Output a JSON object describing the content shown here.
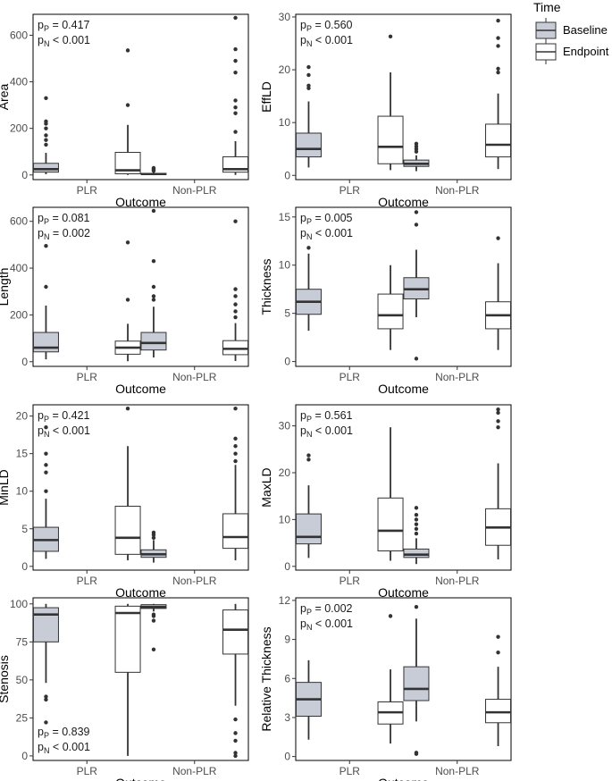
{
  "chart_data": {
    "type": "boxplot",
    "categories": [
      "PLR",
      "Non-PLR"
    ],
    "xlabel": "Outcome",
    "legend": {
      "title": "Time",
      "position": "top-right",
      "entries": [
        {
          "name": "Baseline",
          "color": "#c8ccd6"
        },
        {
          "name": "Endpoint",
          "color": "#ffffff"
        }
      ]
    },
    "panels": [
      {
        "ylabel": "Area",
        "ylim": [
          -20,
          690
        ],
        "yticks": [
          0,
          200,
          400,
          600
        ],
        "annotation": {
          "position": "top-left",
          "lines": [
            {
              "sub": "P",
              "value": "= 0.417"
            },
            {
              "sub": "N",
              "value": "< 0.001"
            }
          ]
        },
        "series": {
          "Baseline": [
            {
              "category": "PLR",
              "q1": 12,
              "median": 25,
              "q3": 50,
              "lo": 3,
              "hi": 95,
              "outliers": [
                130,
                150,
                170,
                200,
                220,
                230,
                330
              ]
            },
            {
              "category": "Non-PLR",
              "q1": 2,
              "median": 4,
              "q3": 7,
              "lo": 0,
              "hi": 12,
              "outliers": [
                18,
                22,
                26,
                30
              ]
            }
          ],
          "Endpoint": [
            {
              "category": "PLR",
              "q1": 5,
              "median": 20,
              "q3": 97,
              "lo": 0,
              "hi": 215,
              "outliers": [
                300,
                535
              ]
            },
            {
              "category": "Non-PLR",
              "q1": 12,
              "median": 25,
              "q3": 78,
              "lo": 0,
              "hi": 145,
              "outliers": [
                185,
                265,
                290,
                320,
                440,
                490,
                540,
                675
              ]
            }
          ]
        }
      },
      {
        "ylabel": "EffLD",
        "ylim": [
          -0.8,
          30.5
        ],
        "yticks": [
          0,
          10,
          20,
          30
        ],
        "annotation": {
          "position": "top-left",
          "lines": [
            {
              "sub": "P",
              "value": "= 0.560"
            },
            {
              "sub": "N",
              "value": "< 0.001"
            }
          ]
        },
        "series": {
          "Baseline": [
            {
              "category": "PLR",
              "q1": 3.5,
              "median": 5.0,
              "q3": 8.0,
              "lo": 1.5,
              "hi": 14.0,
              "outliers": [
                16.5,
                17.0,
                19.0,
                20.5
              ]
            },
            {
              "category": "Non-PLR",
              "q1": 1.7,
              "median": 2.2,
              "q3": 2.9,
              "lo": 0.8,
              "hi": 3.8,
              "outliers": [
                4.5,
                5.0,
                5.5,
                6.0
              ]
            }
          ],
          "Endpoint": [
            {
              "category": "PLR",
              "q1": 2.2,
              "median": 5.4,
              "q3": 11.2,
              "lo": 1.0,
              "hi": 19.5,
              "outliers": [
                26.3
              ]
            },
            {
              "category": "Non-PLR",
              "q1": 3.5,
              "median": 5.8,
              "q3": 9.7,
              "lo": 1.2,
              "hi": 15.5,
              "outliers": [
                19.5,
                20.2,
                24.5,
                26.0,
                29.3
              ]
            }
          ]
        }
      },
      {
        "ylabel": "Length",
        "ylim": [
          -20,
          660
        ],
        "yticks": [
          0,
          200,
          400,
          600
        ],
        "annotation": {
          "position": "top-left",
          "lines": [
            {
              "sub": "P",
              "value": "= 0.081"
            },
            {
              "sub": "N",
              "value": "= 0.002"
            }
          ]
        },
        "series": {
          "Baseline": [
            {
              "category": "PLR",
              "q1": 42,
              "median": 60,
              "q3": 125,
              "lo": 10,
              "hi": 240,
              "outliers": [
                320,
                495
              ]
            },
            {
              "category": "Non-PLR",
              "q1": 50,
              "median": 80,
              "q3": 125,
              "lo": 18,
              "hi": 235,
              "outliers": [
                265,
                280,
                320,
                430,
                645
              ]
            }
          ],
          "Endpoint": [
            {
              "category": "PLR",
              "q1": 32,
              "median": 60,
              "q3": 88,
              "lo": 2,
              "hi": 162,
              "outliers": [
                265,
                510
              ]
            },
            {
              "category": "Non-PLR",
              "q1": 30,
              "median": 55,
              "q3": 90,
              "lo": 3,
              "hi": 165,
              "outliers": [
                190,
                215,
                245,
                280,
                310,
                600
              ]
            }
          ]
        }
      },
      {
        "ylabel": "Thickness",
        "ylim": [
          -0.5,
          16
        ],
        "yticks": [
          0,
          5,
          10,
          15
        ],
        "annotation": {
          "position": "top-left",
          "lines": [
            {
              "sub": "P",
              "value": "= 0.005"
            },
            {
              "sub": "N",
              "value": "< 0.001"
            }
          ]
        },
        "series": {
          "Baseline": [
            {
              "category": "PLR",
              "q1": 4.9,
              "median": 6.2,
              "q3": 7.5,
              "lo": 3.2,
              "hi": 11.2,
              "outliers": [
                11.8
              ]
            },
            {
              "category": "Non-PLR",
              "q1": 6.5,
              "median": 7.5,
              "q3": 8.7,
              "lo": 4.6,
              "hi": 11.6,
              "outliers": [
                0.3,
                14.2,
                15.5
              ]
            }
          ],
          "Endpoint": [
            {
              "category": "PLR",
              "q1": 3.4,
              "median": 4.8,
              "q3": 7.0,
              "lo": 1.2,
              "hi": 10.0,
              "outliers": []
            },
            {
              "category": "Non-PLR",
              "q1": 3.4,
              "median": 4.8,
              "q3": 6.2,
              "lo": 1.2,
              "hi": 10.2,
              "outliers": [
                12.8
              ]
            }
          ]
        }
      },
      {
        "ylabel": "MinLD",
        "ylim": [
          -0.5,
          21.5
        ],
        "yticks": [
          0,
          5,
          10,
          15,
          20
        ],
        "annotation": {
          "position": "top-left",
          "lines": [
            {
              "sub": "P",
              "value": "= 0.421"
            },
            {
              "sub": "N",
              "value": "< 0.001"
            }
          ]
        },
        "series": {
          "Baseline": [
            {
              "category": "PLR",
              "q1": 2.0,
              "median": 3.5,
              "q3": 5.2,
              "lo": 1.0,
              "hi": 9.0,
              "outliers": [
                10.0,
                12.5,
                13.5,
                15.0,
                18.5
              ]
            },
            {
              "category": "Non-PLR",
              "q1": 1.2,
              "median": 1.6,
              "q3": 2.2,
              "lo": 0.5,
              "hi": 3.5,
              "outliers": [
                3.8,
                4.2,
                4.5
              ]
            }
          ],
          "Endpoint": [
            {
              "category": "PLR",
              "q1": 1.6,
              "median": 3.8,
              "q3": 8.0,
              "lo": 0.8,
              "hi": 16.0,
              "outliers": [
                21.0
              ]
            },
            {
              "category": "Non-PLR",
              "q1": 2.4,
              "median": 3.9,
              "q3": 7.0,
              "lo": 0.8,
              "hi": 13.5,
              "outliers": [
                14.0,
                15.0,
                16.0,
                17.0,
                21.0
              ]
            }
          ]
        }
      },
      {
        "ylabel": "MaxLD",
        "ylim": [
          -0.8,
          34.5
        ],
        "yticks": [
          0,
          10,
          20,
          30
        ],
        "annotation": {
          "position": "top-left",
          "lines": [
            {
              "sub": "P",
              "value": "= 0.561"
            },
            {
              "sub": "N",
              "value": "< 0.001"
            }
          ]
        },
        "series": {
          "Baseline": [
            {
              "category": "PLR",
              "q1": 4.8,
              "median": 6.3,
              "q3": 11.2,
              "lo": 1.8,
              "hi": 17.3,
              "outliers": [
                22.8,
                23.7
              ]
            },
            {
              "category": "Non-PLR",
              "q1": 1.9,
              "median": 2.5,
              "q3": 3.7,
              "lo": 0.5,
              "hi": 6.0,
              "outliers": [
                7.0,
                8.0,
                9.0,
                10.0,
                11.0,
                12.5
              ]
            }
          ],
          "Endpoint": [
            {
              "category": "PLR",
              "q1": 3.3,
              "median": 7.6,
              "q3": 14.6,
              "lo": 1.2,
              "hi": 29.7,
              "outliers": []
            },
            {
              "category": "Non-PLR",
              "q1": 4.5,
              "median": 8.3,
              "q3": 12.3,
              "lo": 1.5,
              "hi": 22.0,
              "outliers": [
                29.7,
                31.0,
                32.8,
                33.5
              ]
            }
          ]
        }
      },
      {
        "ylabel": "Stenosis",
        "ylim": [
          -3,
          104
        ],
        "yticks": [
          0,
          25,
          50,
          75,
          100
        ],
        "annotation": {
          "position": "bottom-left",
          "lines": [
            {
              "sub": "P",
              "value": "= 0.839"
            },
            {
              "sub": "N",
              "value": "< 0.001"
            }
          ]
        },
        "series": {
          "Baseline": [
            {
              "category": "PLR",
              "q1": 75,
              "median": 93,
              "q3": 97.5,
              "lo": 48,
              "hi": 100,
              "outliers": [
                22,
                37,
                39
              ]
            },
            {
              "category": "Non-PLR",
              "q1": 97,
              "median": 98,
              "q3": 99.5,
              "lo": 95,
              "hi": 100,
              "outliers": [
                70,
                89,
                92,
                93
              ]
            }
          ],
          "Endpoint": [
            {
              "category": "PLR",
              "q1": 55,
              "median": 94,
              "q3": 98.5,
              "lo": 0,
              "hi": 100,
              "outliers": []
            },
            {
              "category": "Non-PLR",
              "q1": 67,
              "median": 83,
              "q3": 96,
              "lo": 33,
              "hi": 100,
              "outliers": [
                0,
                2,
                10,
                15,
                24
              ]
            }
          ]
        }
      },
      {
        "ylabel": "Relative Thickness",
        "ylim": [
          -0.3,
          12.2
        ],
        "yticks": [
          0,
          3,
          6,
          9,
          12
        ],
        "annotation": {
          "position": "top-left",
          "lines": [
            {
              "sub": "P",
              "value": "= 0.002"
            },
            {
              "sub": "N",
              "value": "< 0.001"
            }
          ]
        },
        "series": {
          "Baseline": [
            {
              "category": "PLR",
              "q1": 3.1,
              "median": 4.4,
              "q3": 5.7,
              "lo": 1.3,
              "hi": 7.4,
              "outliers": []
            },
            {
              "category": "Non-PLR",
              "q1": 4.3,
              "median": 5.2,
              "q3": 6.9,
              "lo": 2.7,
              "hi": 10.6,
              "outliers": [
                0.2,
                0.3,
                11.5
              ]
            }
          ],
          "Endpoint": [
            {
              "category": "PLR",
              "q1": 2.5,
              "median": 3.4,
              "q3": 4.2,
              "lo": 1.0,
              "hi": 6.7,
              "outliers": [
                10.8
              ]
            },
            {
              "category": "Non-PLR",
              "q1": 2.6,
              "median": 3.4,
              "q3": 4.4,
              "lo": 0.8,
              "hi": 6.9,
              "outliers": [
                8.0,
                9.2
              ]
            }
          ]
        }
      }
    ]
  }
}
